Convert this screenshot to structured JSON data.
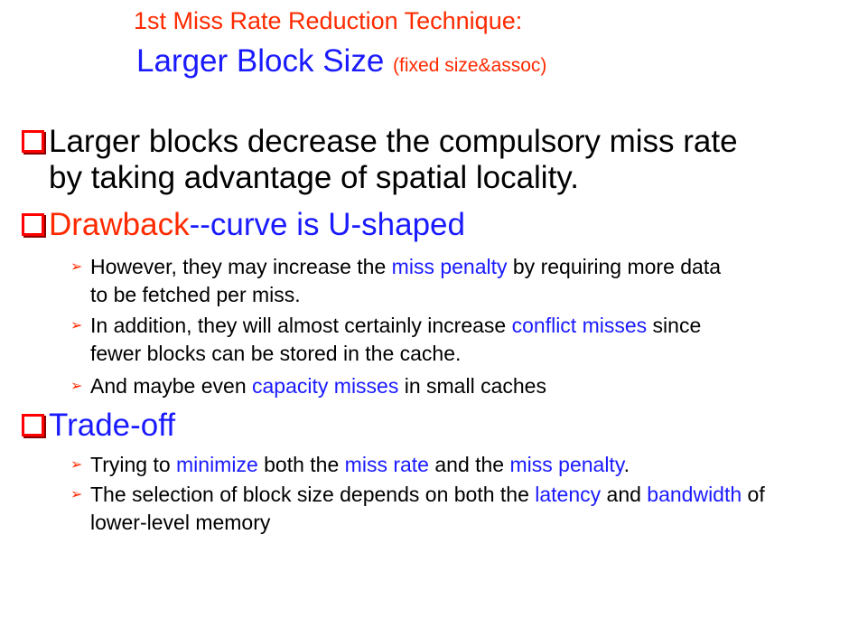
{
  "title": {
    "line1": "1st Miss Rate Reduction Technique:",
    "line2_main": "Larger Block Size",
    "line2_note": "(fixed size&assoc)"
  },
  "b1": {
    "line1": "Larger blocks decrease the compulsory miss rate",
    "line2": "by taking advantage of spatial locality."
  },
  "b2": {
    "part_a": "Drawback",
    "part_b": "--curve is U-shaped",
    "s1": {
      "pre": "However, they may increase the ",
      "hl": "miss penalty",
      "post": " by requiring more data",
      "line2": "to be fetched per miss."
    },
    "s2": {
      "pre": "In addition, they will almost certainly increase ",
      "hl": "conflict misses",
      "post": " since",
      "line2": "fewer blocks can be stored in the cache."
    },
    "s3": {
      "pre": "And maybe even ",
      "hl": "capacity misses",
      "post": " in small caches"
    }
  },
  "b3": {
    "label": "Trade-off",
    "s1": {
      "p1": "Trying to ",
      "h1": "minimize",
      "p2": " both the ",
      "h2": "miss rate",
      "p3": " and the ",
      "h3": "miss penalty",
      "p4": "."
    },
    "s2": {
      "p1": "The selection of block size depends on both the ",
      "h1": "latency",
      "p2": " and ",
      "h2": "bandwidth",
      "p3": " of",
      "line2": "lower-level memory"
    }
  },
  "colors": {
    "red": "#ff2a00",
    "blue": "#1a1aff",
    "text": "#000000"
  },
  "icons": {
    "main_bullet": "hollow-square-bullet",
    "sub_bullet": "arrowhead-bullet"
  }
}
